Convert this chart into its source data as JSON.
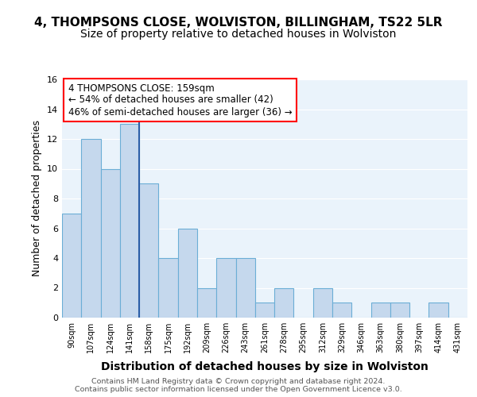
{
  "title": "4, THOMPSONS CLOSE, WOLVISTON, BILLINGHAM, TS22 5LR",
  "subtitle": "Size of property relative to detached houses in Wolviston",
  "xlabel": "Distribution of detached houses by size in Wolviston",
  "ylabel": "Number of detached properties",
  "bin_labels": [
    "90sqm",
    "107sqm",
    "124sqm",
    "141sqm",
    "158sqm",
    "175sqm",
    "192sqm",
    "209sqm",
    "226sqm",
    "243sqm",
    "261sqm",
    "278sqm",
    "295sqm",
    "312sqm",
    "329sqm",
    "346sqm",
    "363sqm",
    "380sqm",
    "397sqm",
    "414sqm",
    "431sqm"
  ],
  "bar_heights": [
    7,
    12,
    10,
    13,
    9,
    4,
    6,
    2,
    4,
    4,
    1,
    2,
    0,
    2,
    1,
    0,
    1,
    1,
    0,
    1,
    0
  ],
  "bar_color": "#c5d8ed",
  "bar_edge_color": "#6baed6",
  "annotation_box_text": "4 THOMPSONS CLOSE: 159sqm\n← 54% of detached houses are smaller (42)\n46% of semi-detached houses are larger (36) →",
  "annotation_fontsize": 8.5,
  "box_edge_color": "red",
  "property_line_x": 3.5,
  "ylim": [
    0,
    16
  ],
  "yticks": [
    0,
    2,
    4,
    6,
    8,
    10,
    12,
    14,
    16
  ],
  "footer_text": "Contains HM Land Registry data © Crown copyright and database right 2024.\nContains public sector information licensed under the Open Government Licence v3.0.",
  "title_fontsize": 11,
  "subtitle_fontsize": 10,
  "xlabel_fontsize": 10,
  "ylabel_fontsize": 9,
  "axes_bg_color": "#eaf3fb"
}
